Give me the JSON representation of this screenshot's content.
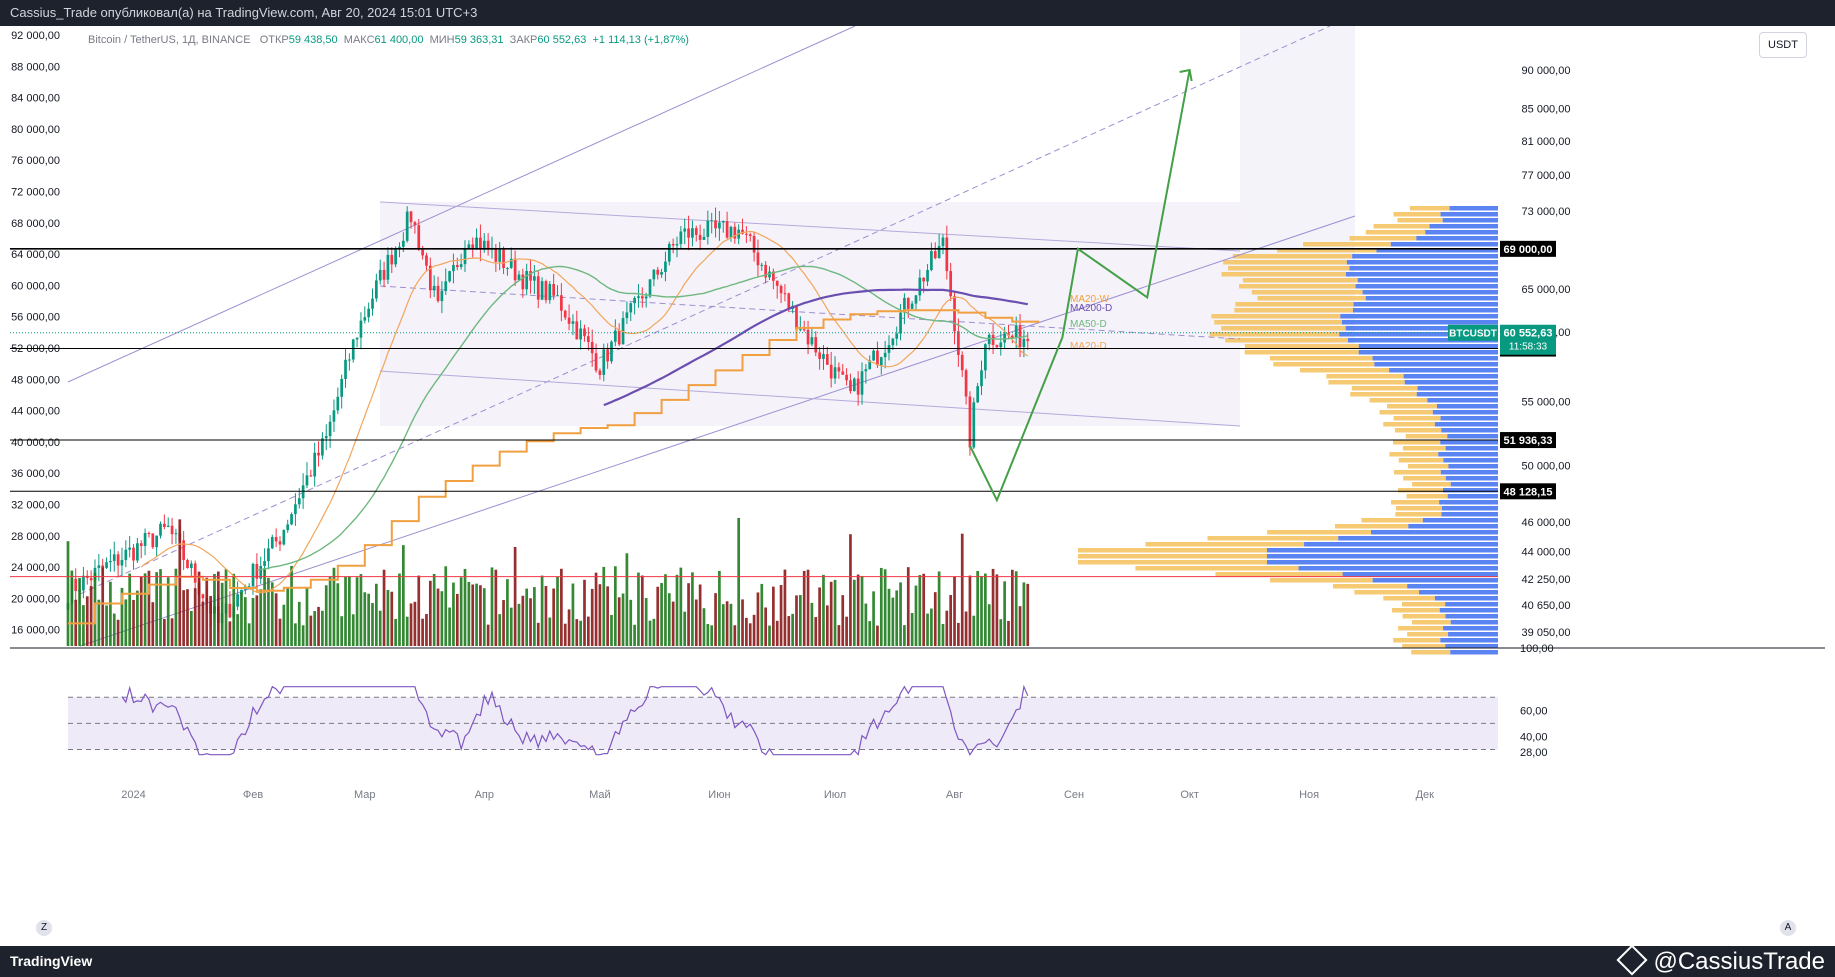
{
  "header": {
    "publish_line": "Cassius_Trade опубликовал(а) на TradingView.com, Авг 20, 2024 15:01 UTC+3"
  },
  "legend": {
    "symbol": "Bitcoin / TetherUS, 1Д, BINANCE",
    "open_label": "ОТКР",
    "open": "59 438,50",
    "high_label": "МАКС",
    "high": "61 400,00",
    "low_label": "МИН",
    "low": "59 363,31",
    "close_label": "ЗАКР",
    "close": "60 552,63",
    "change": "+1 114,13 (+1,87%)"
  },
  "currency_button": "USDT",
  "footer": {
    "brand": "TradingView",
    "watermark": "@CassiusTrade",
    "z_button": "Z",
    "a_button": "A"
  },
  "chart_data": {
    "type": "candlestick",
    "symbol": "BTCUSDT",
    "x_tick_labels": [
      "2024",
      "Фев",
      "Мар",
      "Апр",
      "Май",
      "Июн",
      "Июл",
      "Авг",
      "Сен",
      "Окт",
      "Ноя",
      "Дек"
    ],
    "left_axis": {
      "tick_labels": [
        "92 000,00",
        "88 000,00",
        "84 000,00",
        "80 000,00",
        "76 000,00",
        "72 000,00",
        "68 000,00",
        "64 000,00",
        "60 000,00",
        "56 000,00",
        "52 000,00",
        "48 000,00",
        "44 000,00",
        "40 000,00",
        "36 000,00",
        "32 000,00",
        "28 000,00",
        "24 000,00",
        "20 000,00",
        "16 000,00"
      ]
    },
    "right_axis": {
      "scale": "log",
      "tick_labels": [
        "90 000,00",
        "85 000,00",
        "81 000,00",
        "77 000,00",
        "73 000,00",
        "65 000,00",
        "61 000,00",
        "55 000,00",
        "50 000,00",
        "46 000,00",
        "44 000,00",
        "42 250,00",
        "40 650,00",
        "39 050,00"
      ],
      "tick_values": [
        90000,
        85000,
        81000,
        77000,
        73000,
        65000,
        61000,
        55000,
        50000,
        46000,
        44000,
        42250,
        40650,
        39050
      ]
    },
    "price_tag": {
      "label": "BTCUSDT",
      "value": "60 552,63",
      "countdown": "11:58:33"
    },
    "horizontal_levels": [
      {
        "label": "69 000,00",
        "value": 69000,
        "color": "#000000"
      },
      {
        "label": "59 500,00",
        "value": 59500,
        "color": "#000000"
      },
      {
        "label": "51 936,33",
        "value": 51936.33,
        "color": "#000000"
      },
      {
        "label": "48 128,15",
        "value": 48128.15,
        "color": "#000000"
      },
      {
        "label": "",
        "value": 42400,
        "color": "#f23645"
      }
    ],
    "ma_labels": [
      "MA20-W",
      "MA200-D",
      "MA50-D",
      "MA20-D"
    ],
    "rsi": {
      "tick_labels": [
        "100,00",
        "60,00",
        "40,00",
        "28,00"
      ],
      "upper": 70,
      "mid": 50,
      "lower": 30
    },
    "forecast_path": [
      {
        "date": "2024-08-05",
        "price": 51500
      },
      {
        "date": "2024-08-12",
        "price": 47500
      },
      {
        "date": "2024-08-29",
        "price": 60500
      },
      {
        "date": "2024-09-02",
        "price": 69000
      },
      {
        "date": "2024-09-20",
        "price": 64200
      },
      {
        "date": "2024-10-01",
        "price": 90000
      }
    ],
    "colors": {
      "up": "#089981",
      "down": "#f23645",
      "ma_w": "#f0a040",
      "ma200": "#6a4fb0",
      "ma50": "#6fb87f",
      "ma20": "#f2a65a",
      "forecast": "#43a047",
      "channel": "#9c8fd0",
      "profile_buy": "#3d6ef0",
      "profile_sell": "#f5c15a"
    }
  }
}
